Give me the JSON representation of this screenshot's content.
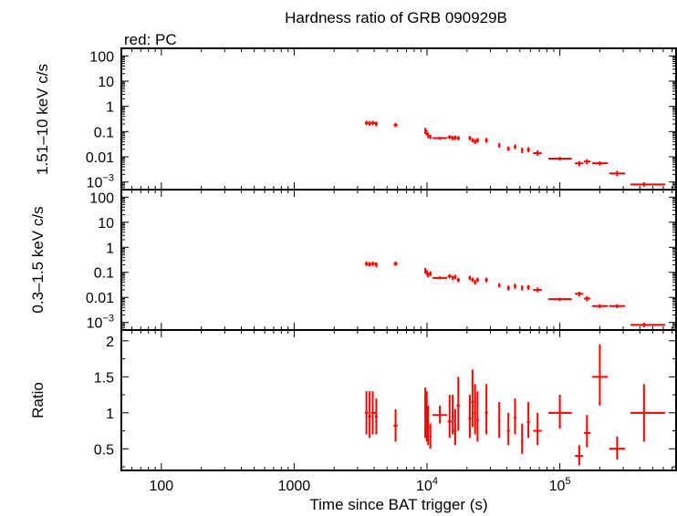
{
  "chart_data": {
    "type": "scatter",
    "title": "Hardness ratio of GRB 090929B",
    "subtitle": "red: PC",
    "xlabel": "Time since BAT trigger (s)",
    "xscale": "log",
    "xlim": [
      50,
      750000
    ],
    "x_ticks": [
      {
        "value": 100,
        "label": "100"
      },
      {
        "value": 1000,
        "label": "1000"
      },
      {
        "value": 10000,
        "label": "10",
        "sup": "4"
      },
      {
        "value": 100000,
        "label": "10",
        "sup": "5"
      }
    ],
    "series_color": "#ff0000",
    "panels": [
      {
        "id": "hard",
        "ylabel": "1.51–10 keV c/s",
        "yscale": "log",
        "ylim": [
          0.0005,
          200
        ],
        "y_ticks": [
          {
            "value": 100,
            "label": "100"
          },
          {
            "value": 10,
            "label": "10"
          },
          {
            "value": 1,
            "label": "1"
          },
          {
            "value": 0.1,
            "label": "0.1"
          },
          {
            "value": 0.01,
            "label": "0.01"
          },
          {
            "value": 0.001,
            "label": "10",
            "sup": "−3"
          }
        ],
        "points": [
          {
            "x": 3500,
            "xlo": 3400,
            "xhi": 3600,
            "y": 0.22,
            "ylo": 0.18,
            "yhi": 0.27
          },
          {
            "x": 3700,
            "xlo": 3600,
            "xhi": 3800,
            "y": 0.21,
            "ylo": 0.17,
            "yhi": 0.26
          },
          {
            "x": 3900,
            "xlo": 3800,
            "xhi": 4100,
            "y": 0.22,
            "ylo": 0.18,
            "yhi": 0.27
          },
          {
            "x": 4150,
            "xlo": 4050,
            "xhi": 4250,
            "y": 0.2,
            "ylo": 0.16,
            "yhi": 0.25
          },
          {
            "x": 5800,
            "xlo": 5600,
            "xhi": 6000,
            "y": 0.18,
            "ylo": 0.15,
            "yhi": 0.22
          },
          {
            "x": 9700,
            "xlo": 9600,
            "xhi": 9850,
            "y": 0.11,
            "ylo": 0.08,
            "yhi": 0.14
          },
          {
            "x": 9950,
            "xlo": 9850,
            "xhi": 10050,
            "y": 0.09,
            "ylo": 0.07,
            "yhi": 0.115
          },
          {
            "x": 10200,
            "xlo": 10050,
            "xhi": 10400,
            "y": 0.07,
            "ylo": 0.055,
            "yhi": 0.09
          },
          {
            "x": 10600,
            "xlo": 10400,
            "xhi": 10800,
            "y": 0.06,
            "ylo": 0.05,
            "yhi": 0.075
          },
          {
            "x": 12500,
            "xlo": 11000,
            "xhi": 14200,
            "y": 0.055,
            "ylo": 0.048,
            "yhi": 0.063
          },
          {
            "x": 14800,
            "xlo": 14300,
            "xhi": 15300,
            "y": 0.06,
            "ylo": 0.05,
            "yhi": 0.072
          },
          {
            "x": 15600,
            "xlo": 15300,
            "xhi": 15900,
            "y": 0.055,
            "ylo": 0.045,
            "yhi": 0.067
          },
          {
            "x": 16300,
            "xlo": 15900,
            "xhi": 16700,
            "y": 0.057,
            "ylo": 0.047,
            "yhi": 0.07
          },
          {
            "x": 17200,
            "xlo": 16700,
            "xhi": 17700,
            "y": 0.055,
            "ylo": 0.045,
            "yhi": 0.067
          },
          {
            "x": 21000,
            "xlo": 20500,
            "xhi": 21500,
            "y": 0.055,
            "ylo": 0.045,
            "yhi": 0.067
          },
          {
            "x": 22000,
            "xlo": 21500,
            "xhi": 22500,
            "y": 0.045,
            "ylo": 0.037,
            "yhi": 0.055
          },
          {
            "x": 23000,
            "xlo": 22500,
            "xhi": 23500,
            "y": 0.04,
            "ylo": 0.032,
            "yhi": 0.05
          },
          {
            "x": 24000,
            "xlo": 23500,
            "xhi": 24600,
            "y": 0.045,
            "ylo": 0.036,
            "yhi": 0.056
          },
          {
            "x": 28000,
            "xlo": 27300,
            "xhi": 28700,
            "y": 0.045,
            "ylo": 0.036,
            "yhi": 0.056
          },
          {
            "x": 35000,
            "xlo": 34300,
            "xhi": 35700,
            "y": 0.028,
            "ylo": 0.023,
            "yhi": 0.035
          },
          {
            "x": 41000,
            "xlo": 40000,
            "xhi": 42000,
            "y": 0.021,
            "ylo": 0.017,
            "yhi": 0.026
          },
          {
            "x": 46000,
            "xlo": 45000,
            "xhi": 47000,
            "y": 0.025,
            "ylo": 0.02,
            "yhi": 0.031
          },
          {
            "x": 52000,
            "xlo": 51000,
            "xhi": 53000,
            "y": 0.018,
            "ylo": 0.014,
            "yhi": 0.023
          },
          {
            "x": 58000,
            "xlo": 56500,
            "xhi": 59500,
            "y": 0.019,
            "ylo": 0.015,
            "yhi": 0.024
          },
          {
            "x": 68000,
            "xlo": 63000,
            "xhi": 73000,
            "y": 0.014,
            "ylo": 0.011,
            "yhi": 0.018
          },
          {
            "x": 100000,
            "xlo": 82000,
            "xhi": 123000,
            "y": 0.0085,
            "ylo": 0.0072,
            "yhi": 0.0098
          },
          {
            "x": 140000,
            "xlo": 130000,
            "xhi": 150000,
            "y": 0.0055,
            "ylo": 0.0042,
            "yhi": 0.0068
          },
          {
            "x": 160000,
            "xlo": 152000,
            "xhi": 170000,
            "y": 0.0065,
            "ylo": 0.005,
            "yhi": 0.008
          },
          {
            "x": 200000,
            "xlo": 175000,
            "xhi": 230000,
            "y": 0.0055,
            "ylo": 0.0045,
            "yhi": 0.0066
          },
          {
            "x": 270000,
            "xlo": 235000,
            "xhi": 310000,
            "y": 0.0022,
            "ylo": 0.0017,
            "yhi": 0.0028
          },
          {
            "x": 430000,
            "xlo": 340000,
            "xhi": 620000,
            "y": 0.0008,
            "ylo": 0.00065,
            "yhi": 0.00098
          }
        ]
      },
      {
        "id": "soft",
        "ylabel": "0.3–1.5 keV c/s",
        "yscale": "log",
        "ylim": [
          0.0005,
          200
        ],
        "y_ticks": [
          {
            "value": 100,
            "label": "100"
          },
          {
            "value": 10,
            "label": "10"
          },
          {
            "value": 1,
            "label": "1"
          },
          {
            "value": 0.1,
            "label": "0.1"
          },
          {
            "value": 0.01,
            "label": "0.01"
          },
          {
            "value": 0.001,
            "label": "10",
            "sup": "−3"
          }
        ],
        "points": [
          {
            "x": 3500,
            "xlo": 3400,
            "xhi": 3600,
            "y": 0.22,
            "ylo": 0.18,
            "yhi": 0.27
          },
          {
            "x": 3700,
            "xlo": 3600,
            "xhi": 3800,
            "y": 0.21,
            "ylo": 0.17,
            "yhi": 0.26
          },
          {
            "x": 3900,
            "xlo": 3800,
            "xhi": 4100,
            "y": 0.22,
            "ylo": 0.18,
            "yhi": 0.27
          },
          {
            "x": 4150,
            "xlo": 4050,
            "xhi": 4250,
            "y": 0.2,
            "ylo": 0.16,
            "yhi": 0.25
          },
          {
            "x": 5800,
            "xlo": 5600,
            "xhi": 6000,
            "y": 0.22,
            "ylo": 0.18,
            "yhi": 0.27
          },
          {
            "x": 9700,
            "xlo": 9600,
            "xhi": 9850,
            "y": 0.12,
            "ylo": 0.09,
            "yhi": 0.15
          },
          {
            "x": 9950,
            "xlo": 9850,
            "xhi": 10050,
            "y": 0.1,
            "ylo": 0.075,
            "yhi": 0.125
          },
          {
            "x": 10200,
            "xlo": 10050,
            "xhi": 10400,
            "y": 0.08,
            "ylo": 0.062,
            "yhi": 0.1
          },
          {
            "x": 10600,
            "xlo": 10400,
            "xhi": 10800,
            "y": 0.09,
            "ylo": 0.07,
            "yhi": 0.11
          },
          {
            "x": 12500,
            "xlo": 11000,
            "xhi": 14200,
            "y": 0.06,
            "ylo": 0.052,
            "yhi": 0.069
          },
          {
            "x": 14800,
            "xlo": 14300,
            "xhi": 15300,
            "y": 0.07,
            "ylo": 0.058,
            "yhi": 0.085
          },
          {
            "x": 15600,
            "xlo": 15300,
            "xhi": 15900,
            "y": 0.06,
            "ylo": 0.049,
            "yhi": 0.073
          },
          {
            "x": 16300,
            "xlo": 15900,
            "xhi": 16700,
            "y": 0.065,
            "ylo": 0.053,
            "yhi": 0.08
          },
          {
            "x": 17200,
            "xlo": 16700,
            "xhi": 17700,
            "y": 0.05,
            "ylo": 0.041,
            "yhi": 0.061
          },
          {
            "x": 21000,
            "xlo": 20500,
            "xhi": 21500,
            "y": 0.06,
            "ylo": 0.049,
            "yhi": 0.073
          },
          {
            "x": 22000,
            "xlo": 21500,
            "xhi": 22500,
            "y": 0.05,
            "ylo": 0.041,
            "yhi": 0.061
          },
          {
            "x": 23000,
            "xlo": 22500,
            "xhi": 23500,
            "y": 0.04,
            "ylo": 0.032,
            "yhi": 0.05
          },
          {
            "x": 24000,
            "xlo": 23500,
            "xhi": 24600,
            "y": 0.05,
            "ylo": 0.04,
            "yhi": 0.062
          },
          {
            "x": 28000,
            "xlo": 27300,
            "xhi": 28700,
            "y": 0.05,
            "ylo": 0.04,
            "yhi": 0.062
          },
          {
            "x": 35000,
            "xlo": 34300,
            "xhi": 35700,
            "y": 0.03,
            "ylo": 0.025,
            "yhi": 0.037
          },
          {
            "x": 41000,
            "xlo": 40000,
            "xhi": 42000,
            "y": 0.024,
            "ylo": 0.019,
            "yhi": 0.03
          },
          {
            "x": 46000,
            "xlo": 45000,
            "xhi": 47000,
            "y": 0.028,
            "ylo": 0.022,
            "yhi": 0.035
          },
          {
            "x": 52000,
            "xlo": 51000,
            "xhi": 53000,
            "y": 0.024,
            "ylo": 0.019,
            "yhi": 0.03
          },
          {
            "x": 58000,
            "xlo": 56500,
            "xhi": 59500,
            "y": 0.025,
            "ylo": 0.02,
            "yhi": 0.031
          },
          {
            "x": 68000,
            "xlo": 63000,
            "xhi": 73000,
            "y": 0.02,
            "ylo": 0.016,
            "yhi": 0.025
          },
          {
            "x": 100000,
            "xlo": 82000,
            "xhi": 123000,
            "y": 0.0085,
            "ylo": 0.0072,
            "yhi": 0.0098
          },
          {
            "x": 140000,
            "xlo": 130000,
            "xhi": 150000,
            "y": 0.014,
            "ylo": 0.011,
            "yhi": 0.017
          },
          {
            "x": 160000,
            "xlo": 152000,
            "xhi": 170000,
            "y": 0.009,
            "ylo": 0.007,
            "yhi": 0.0112
          },
          {
            "x": 200000,
            "xlo": 175000,
            "xhi": 230000,
            "y": 0.0045,
            "ylo": 0.0037,
            "yhi": 0.0054
          },
          {
            "x": 270000,
            "xlo": 235000,
            "xhi": 310000,
            "y": 0.0045,
            "ylo": 0.0037,
            "yhi": 0.0054
          },
          {
            "x": 430000,
            "xlo": 340000,
            "xhi": 620000,
            "y": 0.0008,
            "ylo": 0.00065,
            "yhi": 0.00098
          }
        ]
      },
      {
        "id": "ratio",
        "ylabel": "Ratio",
        "yscale": "linear",
        "ylim": [
          0.2,
          2.15
        ],
        "y_ticks": [
          {
            "value": 2,
            "label": "2"
          },
          {
            "value": 1.5,
            "label": "1.5"
          },
          {
            "value": 1,
            "label": "1"
          },
          {
            "value": 0.5,
            "label": "0.5"
          }
        ],
        "points": [
          {
            "x": 3500,
            "xlo": 3400,
            "xhi": 3600,
            "y": 1.0,
            "ylo": 0.7,
            "yhi": 1.3
          },
          {
            "x": 3700,
            "xlo": 3600,
            "xhi": 3800,
            "y": 0.95,
            "ylo": 0.65,
            "yhi": 1.3
          },
          {
            "x": 3900,
            "xlo": 3800,
            "xhi": 4100,
            "y": 1.0,
            "ylo": 0.7,
            "yhi": 1.3
          },
          {
            "x": 4150,
            "xlo": 4050,
            "xhi": 4250,
            "y": 0.95,
            "ylo": 0.7,
            "yhi": 1.2
          },
          {
            "x": 5800,
            "xlo": 5600,
            "xhi": 6000,
            "y": 0.82,
            "ylo": 0.6,
            "yhi": 1.05
          },
          {
            "x": 9700,
            "xlo": 9600,
            "xhi": 9850,
            "y": 1.0,
            "ylo": 0.65,
            "yhi": 1.35
          },
          {
            "x": 9950,
            "xlo": 9850,
            "xhi": 10050,
            "y": 0.9,
            "ylo": 0.6,
            "yhi": 1.3
          },
          {
            "x": 10200,
            "xlo": 10050,
            "xhi": 10400,
            "y": 0.8,
            "ylo": 0.55,
            "yhi": 1.1
          },
          {
            "x": 10600,
            "xlo": 10400,
            "xhi": 10800,
            "y": 0.67,
            "ylo": 0.5,
            "yhi": 0.85
          },
          {
            "x": 12500,
            "xlo": 11000,
            "xhi": 14200,
            "y": 0.97,
            "ylo": 0.85,
            "yhi": 1.1
          },
          {
            "x": 14800,
            "xlo": 14300,
            "xhi": 15300,
            "y": 0.88,
            "ylo": 0.65,
            "yhi": 1.25
          },
          {
            "x": 15600,
            "xlo": 15300,
            "xhi": 15900,
            "y": 0.95,
            "ylo": 0.7,
            "yhi": 1.25
          },
          {
            "x": 16300,
            "xlo": 15900,
            "xhi": 16700,
            "y": 0.75,
            "ylo": 0.55,
            "yhi": 1.05
          },
          {
            "x": 17200,
            "xlo": 16700,
            "xhi": 17700,
            "y": 1.1,
            "ylo": 0.75,
            "yhi": 1.5
          },
          {
            "x": 21000,
            "xlo": 20500,
            "xhi": 21500,
            "y": 0.92,
            "ylo": 0.65,
            "yhi": 1.25
          },
          {
            "x": 22000,
            "xlo": 21500,
            "xhi": 22500,
            "y": 1.15,
            "ylo": 0.8,
            "yhi": 1.6
          },
          {
            "x": 23000,
            "xlo": 22500,
            "xhi": 23500,
            "y": 1.0,
            "ylo": 0.7,
            "yhi": 1.4
          },
          {
            "x": 24000,
            "xlo": 23500,
            "xhi": 24600,
            "y": 0.9,
            "ylo": 0.6,
            "yhi": 1.3
          },
          {
            "x": 28000,
            "xlo": 27300,
            "xhi": 28700,
            "y": 1.0,
            "ylo": 0.7,
            "yhi": 1.4
          },
          {
            "x": 35000,
            "xlo": 34300,
            "xhi": 35700,
            "y": 0.88,
            "ylo": 0.65,
            "yhi": 1.15
          },
          {
            "x": 41000,
            "xlo": 40000,
            "xhi": 42000,
            "y": 0.75,
            "ylo": 0.55,
            "yhi": 1.0
          },
          {
            "x": 46000,
            "xlo": 45000,
            "xhi": 47000,
            "y": 0.93,
            "ylo": 0.7,
            "yhi": 1.2
          },
          {
            "x": 52000,
            "xlo": 51000,
            "xhi": 53000,
            "y": 0.6,
            "ylo": 0.43,
            "yhi": 0.85
          },
          {
            "x": 58000,
            "xlo": 56500,
            "xhi": 59500,
            "y": 0.87,
            "ylo": 0.65,
            "yhi": 1.15
          },
          {
            "x": 68000,
            "xlo": 63000,
            "xhi": 73000,
            "y": 0.75,
            "ylo": 0.55,
            "yhi": 1.0
          },
          {
            "x": 100000,
            "xlo": 82000,
            "xhi": 123000,
            "y": 1.0,
            "ylo": 0.78,
            "yhi": 1.25
          },
          {
            "x": 140000,
            "xlo": 130000,
            "xhi": 150000,
            "y": 0.4,
            "ylo": 0.27,
            "yhi": 0.55
          },
          {
            "x": 160000,
            "xlo": 152000,
            "xhi": 170000,
            "y": 0.72,
            "ylo": 0.52,
            "yhi": 0.97
          },
          {
            "x": 200000,
            "xlo": 175000,
            "xhi": 230000,
            "y": 1.5,
            "ylo": 1.1,
            "yhi": 1.95
          },
          {
            "x": 270000,
            "xlo": 235000,
            "xhi": 310000,
            "y": 0.5,
            "ylo": 0.35,
            "yhi": 0.67
          },
          {
            "x": 430000,
            "xlo": 340000,
            "xhi": 620000,
            "y": 1.0,
            "ylo": 0.6,
            "yhi": 1.4
          }
        ]
      }
    ]
  }
}
